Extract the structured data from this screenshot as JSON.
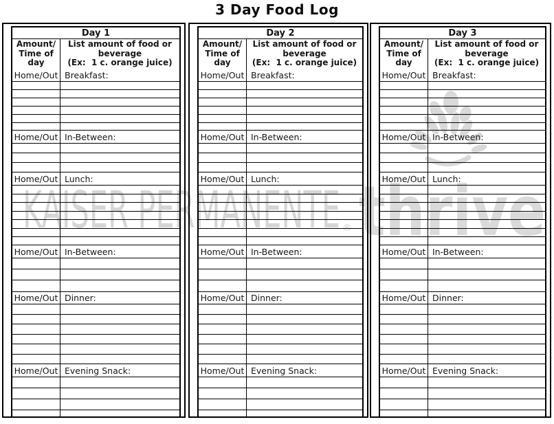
{
  "page_title": "3 Day Food Log",
  "watermark": {
    "brand": "KAISER PERMANENTE",
    "registered_mark": "®",
    "tagline": "thrive",
    "figure_icon": "thrive-figure-icon",
    "color": "#d7d7d7"
  },
  "table": {
    "col1_header": "Amount/\nTime of\nday",
    "col2_header": "List amount of food or\nbeverage\n(Ex:  1 c. orange juice)",
    "home_out": "Home/Out",
    "sections": [
      {
        "meal": "Breakfast:",
        "empty_rows": 6
      },
      {
        "meal": "In-Between:",
        "empty_rows": 3
      },
      {
        "meal": "Lunch:",
        "empty_rows": 7
      },
      {
        "meal": "In-Between:",
        "empty_rows": 3
      },
      {
        "meal": "Dinner:",
        "empty_rows": 6
      },
      {
        "meal": "Evening Snack:",
        "empty_rows": 4
      }
    ]
  },
  "days": [
    {
      "title": "Day 1"
    },
    {
      "title": "Day 2"
    },
    {
      "title": "Day 3"
    }
  ]
}
